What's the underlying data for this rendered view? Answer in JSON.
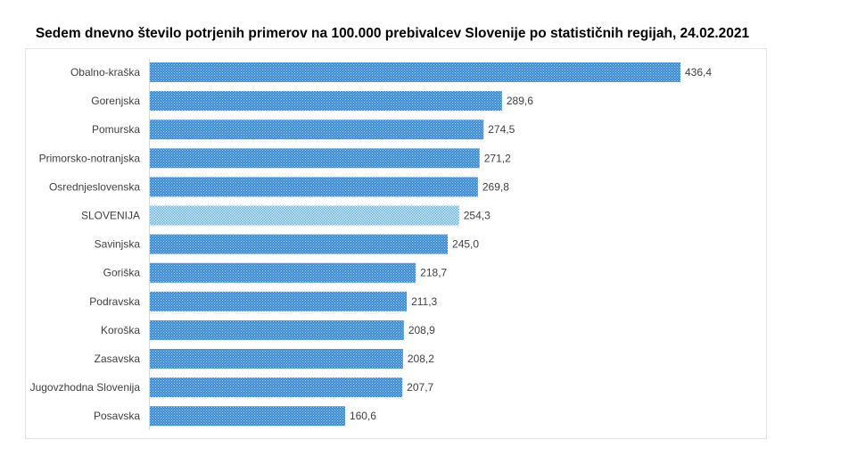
{
  "chart_data": {
    "type": "bar",
    "orientation": "horizontal",
    "title": "Sedem dnevno število potrjenih primerov na 100.000 prebivalcev Slovenije po statističnih regijah, 24.02.2021",
    "categories": [
      "Obalno-kraška",
      "Gorenjska",
      "Pomurska",
      "Primorsko-notranjska",
      "Osrednjeslovenska",
      "SLOVENIJA",
      "Savinjska",
      "Goriška",
      "Podravska",
      "Koroška",
      "Zasavska",
      "Jugovzhodna Slovenija",
      "Posavska"
    ],
    "values": [
      436.4,
      289.6,
      274.5,
      271.2,
      269.8,
      254.3,
      245.0,
      218.7,
      211.3,
      208.9,
      208.2,
      207.7,
      160.6
    ],
    "data_labels": [
      "436,4",
      "289,6",
      "274,5",
      "271,2",
      "269,8",
      "254,3",
      "245,0",
      "218,7",
      "211,3",
      "208,9",
      "208,2",
      "207,7",
      "160,6"
    ],
    "highlight_category": "SLOVENIJA",
    "colors": {
      "bar": "#3b8ad8",
      "highlight": "#8ecbee"
    },
    "xlim": [
      0,
      436.4
    ],
    "grid": false,
    "legend": "none"
  }
}
